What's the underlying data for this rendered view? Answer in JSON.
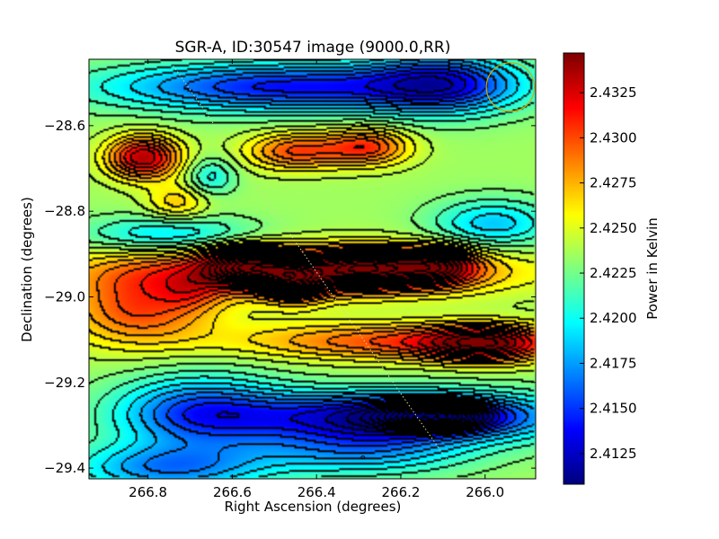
{
  "chart_data": {
    "type": "heatmap",
    "title": "SGR-A, ID:30547 image (9000.0,RR)",
    "xlabel": "Right Ascension (degrees)",
    "ylabel": "Declination (degrees)",
    "xlim": [
      266.94,
      265.88
    ],
    "ylim": [
      -29.425,
      -28.445
    ],
    "x_inverted": true,
    "x_ticks": [
      {
        "value": 266.8,
        "label": "266.8"
      },
      {
        "value": 266.6,
        "label": "266.6"
      },
      {
        "value": 266.4,
        "label": "266.4"
      },
      {
        "value": 266.2,
        "label": "266.2"
      },
      {
        "value": 266.0,
        "label": "266.0"
      }
    ],
    "y_ticks": [
      {
        "value": -28.6,
        "label": "−28.6"
      },
      {
        "value": -28.8,
        "label": "−28.8"
      },
      {
        "value": -29.0,
        "label": "−29.0"
      },
      {
        "value": -29.2,
        "label": "−29.2"
      },
      {
        "value": -29.4,
        "label": "−29.4"
      }
    ],
    "colorbar": {
      "label": "Power in Kelvin",
      "colormap": "jet",
      "range": [
        2.4108,
        2.4347
      ],
      "ticks": [
        {
          "value": 2.4125,
          "label": "2.4125"
        },
        {
          "value": 2.415,
          "label": "2.4150"
        },
        {
          "value": 2.4175,
          "label": "2.4175"
        },
        {
          "value": 2.42,
          "label": "2.4200"
        },
        {
          "value": 2.4225,
          "label": "2.4225"
        },
        {
          "value": 2.425,
          "label": "2.4250"
        },
        {
          "value": 2.4275,
          "label": "2.4275"
        },
        {
          "value": 2.43,
          "label": "2.4300"
        },
        {
          "value": 2.4325,
          "label": "2.4325"
        }
      ]
    },
    "features": [
      {
        "ra": 266.46,
        "dec": -28.51,
        "ra_sigma": 0.3,
        "dec_sigma": 0.04,
        "value": 2.414
      },
      {
        "ra": 266.1,
        "dec": -28.5,
        "ra_sigma": 0.12,
        "dec_sigma": 0.05,
        "value": 2.416
      },
      {
        "ra": 266.81,
        "dec": -28.675,
        "ra_sigma": 0.06,
        "dec_sigma": 0.035,
        "value": 2.4335
      },
      {
        "ra": 266.45,
        "dec": -28.66,
        "ra_sigma": 0.08,
        "dec_sigma": 0.03,
        "value": 2.43
      },
      {
        "ra": 266.28,
        "dec": -28.65,
        "ra_sigma": 0.07,
        "dec_sigma": 0.03,
        "value": 2.4305
      },
      {
        "ra": 266.73,
        "dec": -28.78,
        "ra_sigma": 0.05,
        "dec_sigma": 0.03,
        "value": 2.427
      },
      {
        "ra": 266.65,
        "dec": -28.72,
        "ra_sigma": 0.04,
        "dec_sigma": 0.03,
        "value": 2.42
      },
      {
        "ra": 266.75,
        "dec": -28.855,
        "ra_sigma": 0.14,
        "dec_sigma": 0.03,
        "value": 2.419
      },
      {
        "ra": 265.98,
        "dec": -28.83,
        "ra_sigma": 0.1,
        "dec_sigma": 0.04,
        "value": 2.4185
      },
      {
        "ra": 266.45,
        "dec": -28.94,
        "ra_sigma": 0.34,
        "dec_sigma": 0.04,
        "value": 2.432
      },
      {
        "ra": 266.56,
        "dec": -28.93,
        "ra_sigma": 0.07,
        "dec_sigma": 0.03,
        "value": 2.4345
      },
      {
        "ra": 266.29,
        "dec": -28.935,
        "ra_sigma": 0.08,
        "dec_sigma": 0.03,
        "value": 2.4345
      },
      {
        "ra": 266.12,
        "dec": -28.93,
        "ra_sigma": 0.07,
        "dec_sigma": 0.03,
        "value": 2.433
      },
      {
        "ra": 266.45,
        "dec": -28.965,
        "ra_sigma": 0.05,
        "dec_sigma": 0.03,
        "value": 2.4335
      },
      {
        "ra": 266.82,
        "dec": -29.03,
        "ra_sigma": 0.12,
        "dec_sigma": 0.06,
        "value": 2.43
      },
      {
        "ra": 266.7,
        "dec": -28.99,
        "ra_sigma": 0.05,
        "dec_sigma": 0.03,
        "value": 2.426
      },
      {
        "ra": 266.2,
        "dec": -29.105,
        "ra_sigma": 0.26,
        "dec_sigma": 0.03,
        "value": 2.43
      },
      {
        "ra": 266.0,
        "dec": -29.11,
        "ra_sigma": 0.1,
        "dec_sigma": 0.03,
        "value": 2.432
      },
      {
        "ra": 266.52,
        "dec": -29.05,
        "ra_sigma": 0.14,
        "dec_sigma": 0.04,
        "value": 2.424
      },
      {
        "ra": 266.68,
        "dec": -29.27,
        "ra_sigma": 0.14,
        "dec_sigma": 0.06,
        "value": 2.416
      },
      {
        "ra": 266.2,
        "dec": -29.28,
        "ra_sigma": 0.26,
        "dec_sigma": 0.04,
        "value": 2.411
      },
      {
        "ra": 266.12,
        "dec": -29.28,
        "ra_sigma": 0.08,
        "dec_sigma": 0.02,
        "value": 2.4108
      },
      {
        "ra": 266.3,
        "dec": -29.36,
        "ra_sigma": 0.18,
        "dec_sigma": 0.04,
        "value": 2.418
      },
      {
        "ra": 266.75,
        "dec": -29.4,
        "ra_sigma": 0.16,
        "dec_sigma": 0.04,
        "value": 2.417
      }
    ],
    "background_value": 2.4235,
    "overlays": [
      {
        "type": "circle",
        "ra": 265.94,
        "dec": -28.51,
        "radius_deg": 0.057,
        "color": "#d4aa00"
      },
      {
        "type": "dotted-line",
        "from": [
          266.74,
          -28.46
        ],
        "to": [
          266.07,
          -29.41
        ],
        "color": "#d8d8a0"
      },
      {
        "type": "small-contour",
        "ra": 266.29,
        "dec": -29.375
      }
    ],
    "grid": false,
    "contours": true
  }
}
